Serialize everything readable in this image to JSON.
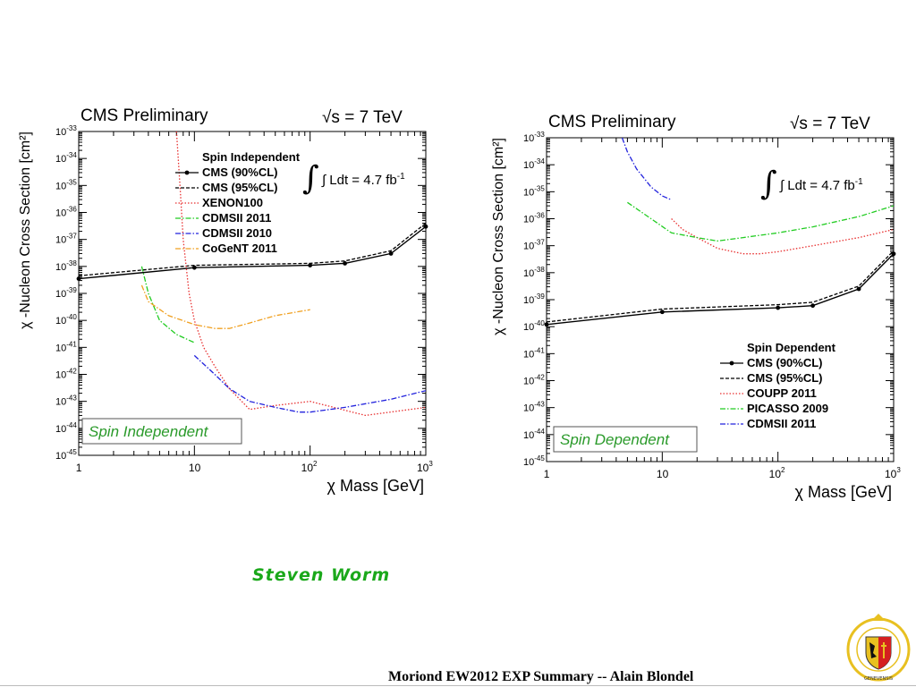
{
  "slide": {
    "author": "Steven Worm",
    "footer": "Moriond EW2012 EXP Summary -- Alain Blondel"
  },
  "colors": {
    "cms": "#000000",
    "xenon": "#e83030",
    "coupp": "#e83030",
    "cdms2011": "#22cc22",
    "picasso": "#22cc22",
    "cdms2010": "#2222dd",
    "cdmsSD": "#2222dd",
    "cogent": "#f0a020",
    "box_text": "#2a9a2a",
    "logo_red": "#d42020",
    "logo_gold": "#e8c020"
  },
  "logo": {
    "name": "university-of-geneva-seal",
    "text": "SCHOLA GENEVENSIS 1559"
  },
  "chart_data": [
    {
      "type": "line",
      "title": "CMS Preliminary",
      "energy": "√s = 7 TeV",
      "lumi": "∫ Ldt = 4.7 fb",
      "lumi_exp": "-1",
      "xlabel": "χ Mass [GeV]",
      "ylabel": "χ -Nucleon Cross Section [cm²]",
      "xscale": "log",
      "yscale": "log",
      "xlim": [
        1,
        1000
      ],
      "ylim": [
        1e-45,
        1e-33
      ],
      "x_ticks": [
        {
          "v": 1,
          "m": "1",
          "e": ""
        },
        {
          "v": 10,
          "m": "10",
          "e": ""
        },
        {
          "v": 100,
          "m": "10",
          "e": "2"
        },
        {
          "v": 1000,
          "m": "10",
          "e": "3"
        }
      ],
      "y_ticks": [
        -45,
        -44,
        -43,
        -42,
        -41,
        -40,
        -39,
        -38,
        -37,
        -36,
        -35,
        -34,
        -33
      ],
      "legend_title": "Spin Independent",
      "legend_position": "top-center",
      "box_label": "Spin Independent",
      "series": [
        {
          "name": "CMS (90%CL)",
          "style": "solid-marker",
          "color": "#000000",
          "points": [
            [
              1,
              3.5e-39
            ],
            [
              10,
              9e-39
            ],
            [
              100,
              1.1e-38
            ],
            [
              200,
              1.3e-38
            ],
            [
              500,
              3e-38
            ],
            [
              1000,
              3e-37
            ]
          ]
        },
        {
          "name": "CMS (95%CL)",
          "style": "dashed",
          "color": "#000000",
          "points": [
            [
              1,
              4.5e-39
            ],
            [
              10,
              1.1e-38
            ],
            [
              100,
              1.3e-38
            ],
            [
              200,
              1.6e-38
            ],
            [
              500,
              3.8e-38
            ],
            [
              1000,
              4e-37
            ]
          ]
        },
        {
          "name": "XENON100",
          "style": "dotted",
          "color": "#e83030",
          "points": [
            [
              7,
              1e-33
            ],
            [
              7.5,
              1e-35
            ],
            [
              8,
              1e-37
            ],
            [
              9,
              1e-39
            ],
            [
              10,
              1e-40
            ],
            [
              12,
              1e-41
            ],
            [
              15,
              2e-42
            ],
            [
              20,
              3e-43
            ],
            [
              30,
              5e-44
            ],
            [
              50,
              7e-44
            ],
            [
              100,
              1e-43
            ],
            [
              300,
              3e-44
            ],
            [
              1000,
              6e-44
            ]
          ]
        },
        {
          "name": "CDMSII 2011",
          "style": "dashdot",
          "color": "#22cc22",
          "points": [
            [
              3.5,
              1e-38
            ],
            [
              4,
              1e-39
            ],
            [
              5,
              1e-40
            ],
            [
              7,
              3e-41
            ],
            [
              10,
              1.5e-41
            ]
          ]
        },
        {
          "name": "CDMSII 2010",
          "style": "dashdot",
          "color": "#2222dd",
          "points": [
            [
              10,
              5e-42
            ],
            [
              15,
              1e-42
            ],
            [
              20,
              3e-43
            ],
            [
              30,
              1e-43
            ],
            [
              50,
              6e-44
            ],
            [
              80,
              4e-44
            ],
            [
              100,
              4e-44
            ],
            [
              200,
              6e-44
            ],
            [
              500,
              1.2e-43
            ],
            [
              1000,
              2.5e-43
            ]
          ]
        },
        {
          "name": "CoGeNT 2011",
          "style": "dashdot",
          "color": "#f0a020",
          "points": [
            [
              3.5,
              2e-39
            ],
            [
              4,
              5e-40
            ],
            [
              6,
              1.5e-40
            ],
            [
              10,
              7e-41
            ],
            [
              15,
              5e-41
            ],
            [
              20,
              5e-41
            ],
            [
              30,
              8e-41
            ],
            [
              50,
              1.5e-40
            ],
            [
              100,
              2.5e-40
            ]
          ]
        }
      ]
    },
    {
      "type": "line",
      "title": "CMS Preliminary",
      "energy": "√s = 7 TeV",
      "lumi": "∫ Ldt = 4.7 fb",
      "lumi_exp": "-1",
      "xlabel": "χ Mass [GeV]",
      "ylabel": "χ -Nucleon Cross Section [cm²]",
      "xscale": "log",
      "yscale": "log",
      "xlim": [
        1,
        1000
      ],
      "ylim": [
        1e-45,
        1e-33
      ],
      "x_ticks": [
        {
          "v": 1,
          "m": "1",
          "e": ""
        },
        {
          "v": 10,
          "m": "10",
          "e": ""
        },
        {
          "v": 100,
          "m": "10",
          "e": "2"
        },
        {
          "v": 1000,
          "m": "10",
          "e": "3"
        }
      ],
      "y_ticks": [
        -45,
        -44,
        -43,
        -42,
        -41,
        -40,
        -39,
        -38,
        -37,
        -36,
        -35,
        -34,
        -33
      ],
      "legend_title": "Spin Dependent",
      "legend_position": "bottom-right",
      "box_label": "Spin Dependent",
      "series": [
        {
          "name": "CMS (90%CL)",
          "style": "solid-marker",
          "color": "#000000",
          "points": [
            [
              1,
              1.2e-40
            ],
            [
              10,
              3.5e-40
            ],
            [
              100,
              5e-40
            ],
            [
              200,
              6e-40
            ],
            [
              500,
              2.5e-39
            ],
            [
              1000,
              5e-38
            ]
          ]
        },
        {
          "name": "CMS (95%CL)",
          "style": "dashed",
          "color": "#000000",
          "points": [
            [
              1,
              1.5e-40
            ],
            [
              10,
              4.5e-40
            ],
            [
              100,
              6.5e-40
            ],
            [
              200,
              8e-40
            ],
            [
              500,
              3.2e-39
            ],
            [
              1000,
              6.5e-38
            ]
          ]
        },
        {
          "name": "COUPP 2011",
          "style": "dotted",
          "color": "#e83030",
          "points": [
            [
              12,
              1e-36
            ],
            [
              15,
              4e-37
            ],
            [
              20,
              2e-37
            ],
            [
              30,
              8e-38
            ],
            [
              50,
              5e-38
            ],
            [
              70,
              5e-38
            ],
            [
              100,
              6e-38
            ],
            [
              200,
              1e-37
            ],
            [
              500,
              2e-37
            ],
            [
              1000,
              4e-37
            ]
          ]
        },
        {
          "name": "PICASSO 2009",
          "style": "dashdot",
          "color": "#22cc22",
          "points": [
            [
              5,
              4e-36
            ],
            [
              8,
              1e-36
            ],
            [
              12,
              3e-37
            ],
            [
              20,
              2e-37
            ],
            [
              30,
              1.5e-37
            ],
            [
              50,
              2e-37
            ],
            [
              100,
              3e-37
            ],
            [
              200,
              5e-37
            ],
            [
              500,
              1.2e-36
            ],
            [
              1000,
              3e-36
            ]
          ]
        },
        {
          "name": "CDMSII 2011",
          "style": "dashdot",
          "color": "#2222dd",
          "points": [
            [
              4.5,
              1e-33
            ],
            [
              5,
              3e-34
            ],
            [
              6,
              7e-35
            ],
            [
              8,
              1.5e-35
            ],
            [
              10,
              7e-36
            ],
            [
              12,
              5e-36
            ]
          ]
        }
      ]
    }
  ]
}
